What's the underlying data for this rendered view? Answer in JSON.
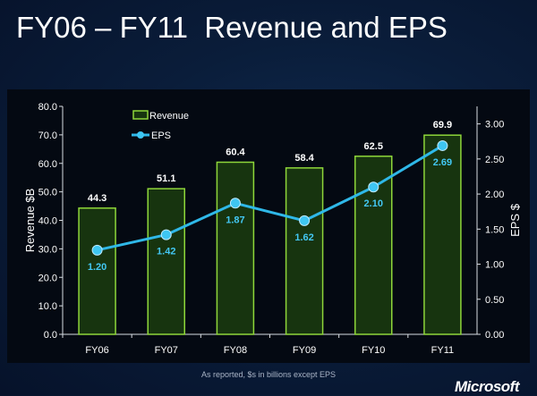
{
  "slide": {
    "title": "FY06 – FY11  Revenue and EPS",
    "footnote": "As reported, $s in billions except EPS",
    "brand": "Microsoft"
  },
  "colors": {
    "bar_fill": "#17340f",
    "bar_stroke": "#8ed63a",
    "line": "#2fb8e8",
    "marker": "#3ec6f2",
    "eps_label": "#43c8f4",
    "revenue_label": "#ffffff"
  },
  "chart_data": {
    "type": "bar",
    "categories": [
      "FY06",
      "FY07",
      "FY08",
      "FY09",
      "FY10",
      "FY11"
    ],
    "series": [
      {
        "name": "Revenue",
        "type": "bar",
        "axis": "left",
        "values": [
          44.3,
          51.1,
          60.4,
          58.4,
          62.5,
          69.9
        ],
        "labels": [
          "44.3",
          "51.1",
          "60.4",
          "58.4",
          "62.5",
          "69.9"
        ]
      },
      {
        "name": "EPS",
        "type": "line",
        "axis": "right",
        "values": [
          1.2,
          1.42,
          1.87,
          1.62,
          2.1,
          2.69
        ],
        "labels": [
          "1.20",
          "1.42",
          "1.87",
          "1.62",
          "2.10",
          "2.69"
        ]
      }
    ],
    "ylabel": "Revenue $B",
    "y2label": "EPS $",
    "ylim": [
      0,
      80
    ],
    "y2lim": [
      0,
      3.25
    ],
    "yticks": [
      "0.0",
      "10.0",
      "20.0",
      "30.0",
      "40.0",
      "50.0",
      "60.0",
      "70.0",
      "80.0"
    ],
    "y2ticks": [
      "0.00",
      "0.50",
      "1.00",
      "1.50",
      "2.00",
      "2.50",
      "3.00"
    ],
    "legend": {
      "placement": "top-left",
      "entries": [
        "Revenue",
        "EPS"
      ]
    },
    "grid": false
  }
}
